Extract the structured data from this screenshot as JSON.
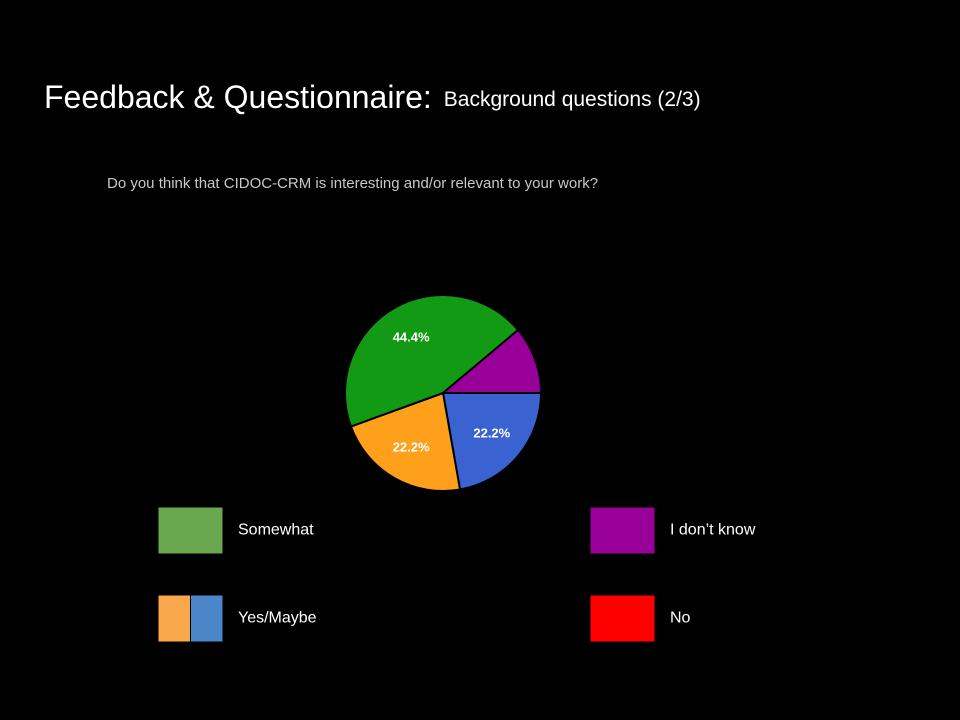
{
  "chart_data": {
    "type": "pie",
    "title": "Feedback & Questionnaire:",
    "subtitle": "Background questions (2/3)",
    "question": "Do you think that CIDOC-CRM is interesting and/or relevant to your work?",
    "values": [
      22.2,
      22.2,
      44.4,
      11.1
    ],
    "value_labels": [
      "22.2%",
      "22.2%",
      "44.4%",
      null
    ],
    "colors": [
      "#3a63d1",
      "#ffa01a",
      "#129a14",
      "#990099"
    ],
    "legend": [
      {
        "label": "Somewhat",
        "colors": [
          "#6aa84f"
        ]
      },
      {
        "label": "I don’t know",
        "colors": [
          "#990099"
        ]
      },
      {
        "label": "Yes/Maybe",
        "colors": [
          "#f9a94b",
          "#4a86c8"
        ]
      },
      {
        "label": "No",
        "colors": [
          "#ff0000"
        ]
      }
    ]
  }
}
